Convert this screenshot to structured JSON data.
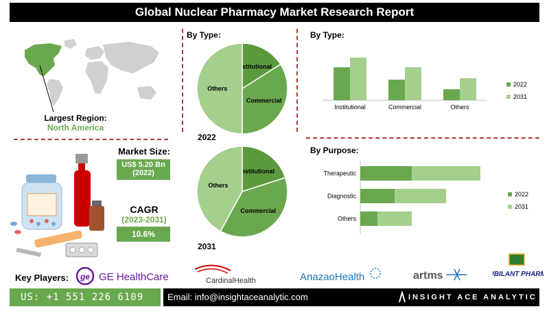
{
  "header": {
    "title": "Global Nuclear Pharmacy Market Research Report"
  },
  "region": {
    "label": "Largest Region:",
    "value": "North America"
  },
  "market_size": {
    "label": "Market Size:",
    "value": "US$ 5.20 Bn",
    "year": "(2022)"
  },
  "cagr": {
    "label": "CAGR",
    "period": "(2023-2031)",
    "value": "10.6%"
  },
  "colors": {
    "dark_green": "#6aa84f",
    "light_green": "#a4cf8c",
    "mid_green": "#5b9a3c",
    "accent_red": "#b03a2e"
  },
  "chart_data": [
    {
      "type": "pie",
      "title": "By Type:",
      "caption": "2022",
      "slices": [
        {
          "label": "Institutional",
          "value": 16
        },
        {
          "label": "Commercial",
          "value": 34
        },
        {
          "label": "Others",
          "value": 50
        }
      ]
    },
    {
      "type": "pie",
      "caption": "2031",
      "slices": [
        {
          "label": "Institutional",
          "value": 20
        },
        {
          "label": "Commercial",
          "value": 38
        },
        {
          "label": "Others",
          "value": 42
        }
      ]
    },
    {
      "type": "bar",
      "title": "By Type:",
      "categories": [
        "Institutional",
        "Commercial",
        "Others"
      ],
      "series": [
        {
          "name": "2022",
          "values": [
            48,
            30,
            16
          ]
        },
        {
          "name": "2031",
          "values": [
            62,
            48,
            32
          ]
        }
      ],
      "ylim": [
        0,
        70
      ],
      "legend": "right"
    },
    {
      "type": "bar",
      "orientation": "horizontal",
      "stacked": true,
      "title": "By Purpose:",
      "categories": [
        "Therapeutic",
        "Diagnostic",
        "Others"
      ],
      "series": [
        {
          "name": "2022",
          "values": [
            30,
            20,
            10
          ]
        },
        {
          "name": "2031",
          "values": [
            40,
            30,
            20
          ]
        }
      ],
      "xlim": [
        0,
        80
      ],
      "legend": "right"
    }
  ],
  "key_players": {
    "label": "Key Players:",
    "companies": [
      "GE HealthCare",
      "CardinalHealth",
      "AnazaoHealth",
      "artms",
      "JUBILANT PHARMA"
    ]
  },
  "footer": {
    "phone": "US: +1 551 226 6109",
    "email": "Email: info@insightaceanalytic.com",
    "brand": "INSIGHT ACE ANALYTIC"
  }
}
